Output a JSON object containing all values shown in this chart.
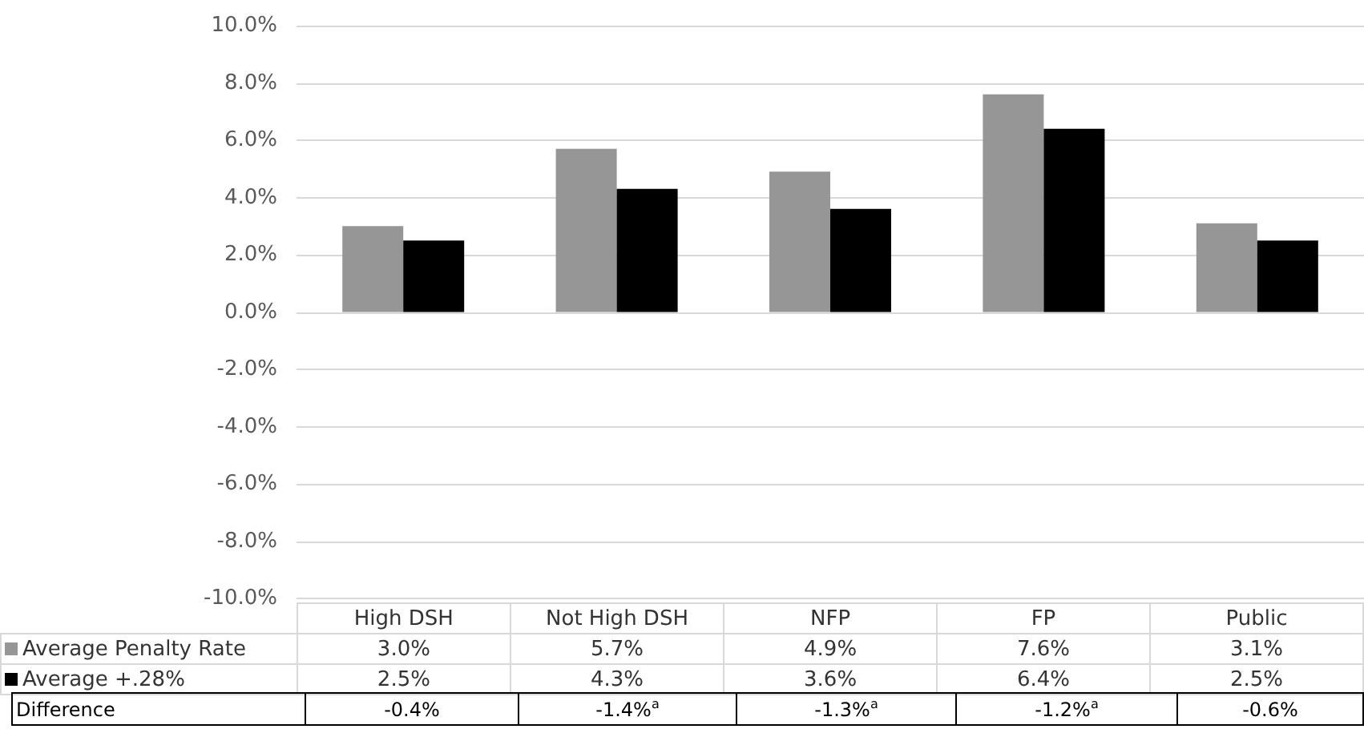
{
  "chart_data": {
    "type": "bar",
    "categories": [
      "High DSH",
      "Not High DSH",
      "NFP",
      "FP",
      "Public"
    ],
    "series": [
      {
        "name": "Average Penalty Rate",
        "color": "#969696",
        "values": [
          3.0,
          5.7,
          4.9,
          7.6,
          3.1
        ],
        "value_labels": [
          "3.0%",
          "5.7%",
          "4.9%",
          "7.6%",
          "3.1%"
        ]
      },
      {
        "name": "Average +.28%",
        "color": "#000000",
        "values": [
          2.5,
          4.3,
          3.6,
          6.4,
          2.5
        ],
        "value_labels": [
          "2.5%",
          "4.3%",
          "3.6%",
          "6.4%",
          "2.5%"
        ]
      }
    ],
    "ylim": [
      -10,
      10
    ],
    "yticks": [
      {
        "value": -10,
        "label": "-10.0%"
      },
      {
        "value": -8,
        "label": "-8.0%"
      },
      {
        "value": -6,
        "label": "-6.0%"
      },
      {
        "value": -4,
        "label": "-4.0%"
      },
      {
        "value": -2,
        "label": "-2.0%"
      },
      {
        "value": 0,
        "label": "0.0%"
      },
      {
        "value": 2,
        "label": "2.0%"
      },
      {
        "value": 4,
        "label": "4.0%"
      },
      {
        "value": 6,
        "label": "6.0%"
      },
      {
        "value": 8,
        "label": "8.0%"
      },
      {
        "value": 10,
        "label": "10.0%"
      }
    ],
    "grid": "y",
    "legend": "bottom",
    "annotations": [
      "Difference",
      "-0.4%",
      "-1.4%$^{a}$",
      "-1.3%$^{a}$",
      "-1.2%$^{a}$",
      "-0.6%"
    ]
  }
}
